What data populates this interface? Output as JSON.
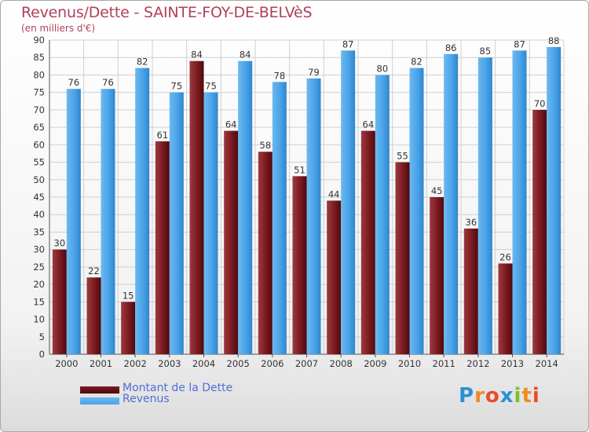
{
  "chart_data": {
    "type": "bar",
    "title": "Revenus/Dette - SAINTE-FOY-DE-BELVèS",
    "subtitle": "(en milliers d'€)",
    "xlabel": "",
    "ylabel": "",
    "categories": [
      "2000",
      "2001",
      "2002",
      "2003",
      "2004",
      "2005",
      "2006",
      "2007",
      "2008",
      "2009",
      "2010",
      "2011",
      "2012",
      "2013",
      "2014"
    ],
    "series": [
      {
        "name": "Montant de la Dette",
        "color": "#7a1a1f",
        "values": [
          30,
          22,
          15,
          61,
          84,
          64,
          58,
          51,
          44,
          64,
          55,
          45,
          36,
          26,
          70
        ]
      },
      {
        "name": "Revenus",
        "color": "#4aa3e8",
        "values": [
          76,
          76,
          82,
          75,
          75,
          84,
          78,
          79,
          87,
          80,
          82,
          86,
          85,
          87,
          88
        ]
      }
    ],
    "ylim": [
      0,
      90
    ],
    "yticks": [
      0,
      5,
      10,
      15,
      20,
      25,
      30,
      35,
      40,
      45,
      50,
      55,
      60,
      65,
      70,
      75,
      80,
      85,
      90
    ],
    "grid": true,
    "legend": "bottom-left"
  },
  "logo": {
    "letters": [
      "P",
      "r",
      "o",
      "x",
      "i",
      "t",
      "i"
    ],
    "colors": [
      "#2d8fd6",
      "#f08a1e",
      "#e84c2b",
      "#2d8fd6",
      "#7bbf2e",
      "#f08a1e",
      "#e84c2b"
    ]
  }
}
